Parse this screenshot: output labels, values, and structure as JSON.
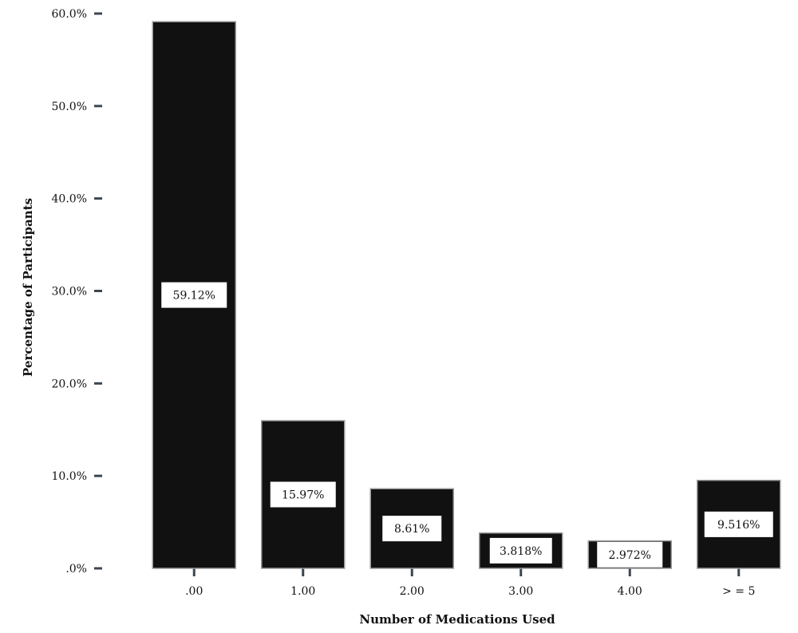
{
  "chart_data": {
    "type": "bar",
    "categories": [
      ".00",
      "1.00",
      "2.00",
      "3.00",
      "4.00",
      "> = 5"
    ],
    "values": [
      59.12,
      15.97,
      8.61,
      3.818,
      2.972,
      9.516
    ],
    "data_labels": [
      "59.12%",
      "15.97%",
      "8.61%",
      "3.818%",
      "2.972%",
      "9.516%"
    ],
    "title": "",
    "xlabel": "Number of Medications Used",
    "ylabel": "Percentage of Participants",
    "ylim": [
      0,
      60
    ],
    "yticks": [
      ".0%",
      "10.0%",
      "20.0%",
      "30.0%",
      "40.0%",
      "50.0%",
      "60.0%"
    ],
    "grid": false,
    "legend": "none",
    "colors": {
      "bar": "#111111",
      "bar_outline": "#9a9a9a",
      "label_box": "#ffffff",
      "axis": "#3c4650"
    }
  }
}
